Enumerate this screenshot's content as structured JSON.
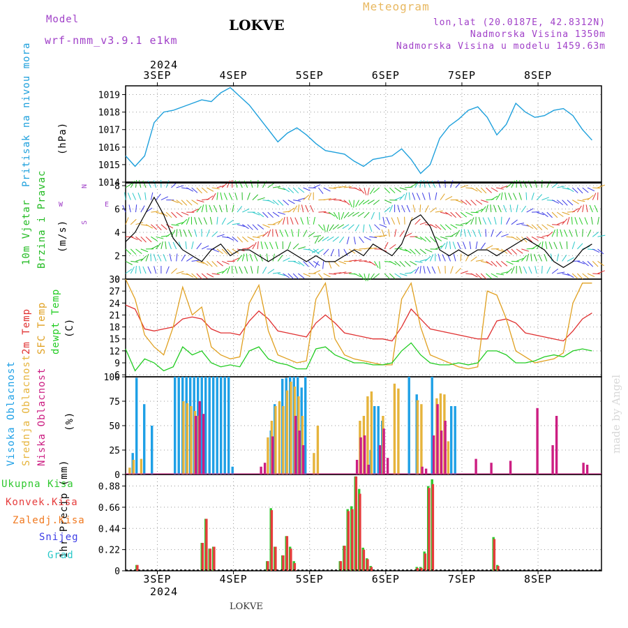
{
  "header": {
    "model_label": "Model",
    "model_name": "wrf-nmm_v3.9.1  e1km",
    "station": "LOKVE",
    "meteogram": "Meteogram",
    "coords": "lon,lat (20.0187E, 42.8312N)",
    "altitude": "Nadmorska Visina 1350m",
    "model_altitude": "Nadmorska Visina u modelu 1459.63m",
    "footer_station": "LOKVE",
    "watermark": "made by Angel"
  },
  "colors": {
    "pressure": "#1ea0dc",
    "wind_green": "#22bb22",
    "temp2m": "#e03030",
    "sfc": "#e0a020",
    "dew": "#22cc22",
    "high_cloud": "#1ea0e6",
    "mid_cloud": "#e6b43c",
    "low_cloud": "#cc1e82",
    "total_precip": "#2ec82e",
    "conv_precip": "#e63c3c",
    "frozen": "#f0781e",
    "snow": "#3c3ce6",
    "hail": "#28c8c8"
  },
  "axes": {
    "year_top": "2024",
    "year_bottom": "2024",
    "days": [
      "3SEP",
      "4SEP",
      "5SEP",
      "6SEP",
      "7SEP",
      "8SEP"
    ]
  },
  "panel_labels": {
    "pressure_title": "Pritisak na nivou mora",
    "pressure_unit": "(hPa)",
    "wind_title1": "10m Vjetar",
    "wind_title2": "Brzina i Pravac",
    "wind_unit": "(m/s)",
    "compass": [
      "N",
      "W",
      "E",
      "S"
    ],
    "temp_title1": "2m Temp",
    "temp_title2": "SFC Temp",
    "temp_title3": "dewpt Temp",
    "temp_unit": "(C)",
    "cloud_title1": "Visoka Oblacnost",
    "cloud_title2": "Srednja Oblacnost",
    "cloud_title3": "Niska Oblacnost",
    "cloud_unit": "(%)",
    "precip_title": "1hr Precip (mm)",
    "precip_legend": [
      "Ukupna Kisa",
      "Konvek.Kisa",
      "Zaledj.Kisa",
      "Snijeg",
      "Grad"
    ]
  },
  "chart_data": [
    {
      "type": "line",
      "name": "pressure",
      "ylim": [
        1014,
        1019.5
      ],
      "yticks": [
        1014,
        1015,
        1016,
        1017,
        1018,
        1019
      ],
      "x_hours": [
        0,
        3,
        6,
        9,
        12,
        15,
        18,
        21,
        24,
        27,
        30,
        33,
        36,
        39,
        42,
        45,
        48,
        51,
        54,
        57,
        60,
        63,
        66,
        69,
        72,
        75,
        78,
        81,
        84,
        87,
        90,
        93,
        96,
        99,
        102,
        105,
        108,
        111,
        114,
        117,
        120,
        123,
        126,
        129,
        132,
        135,
        138,
        141,
        144,
        147
      ],
      "values": [
        1015.5,
        1014.9,
        1015.5,
        1017.4,
        1018.0,
        1018.1,
        1018.3,
        1018.5,
        1018.7,
        1018.6,
        1019.1,
        1019.4,
        1018.9,
        1018.4,
        1017.7,
        1017.0,
        1016.3,
        1016.8,
        1017.1,
        1016.7,
        1016.2,
        1015.8,
        1015.7,
        1015.6,
        1015.2,
        1014.9,
        1015.3,
        1015.4,
        1015.5,
        1015.9,
        1015.3,
        1014.5,
        1015.0,
        1016.5,
        1017.2,
        1017.6,
        1018.1,
        1018.3,
        1017.7,
        1016.7,
        1017.3,
        1018.5,
        1018.0,
        1017.7,
        1017.8,
        1018.1,
        1018.2,
        1017.8,
        1017.0,
        1016.4
      ]
    },
    {
      "type": "line",
      "name": "wind_speed",
      "ylim": [
        0,
        8.3
      ],
      "yticks": [
        0,
        2,
        4,
        6,
        8
      ],
      "x_hours": [
        0,
        3,
        6,
        9,
        12,
        15,
        18,
        21,
        24,
        27,
        30,
        33,
        36,
        39,
        42,
        45,
        48,
        51,
        54,
        57,
        60,
        63,
        66,
        69,
        72,
        75,
        78,
        81,
        84,
        87,
        90,
        93,
        96,
        99,
        102,
        105,
        108,
        111,
        114,
        117,
        120,
        123,
        126,
        129,
        132,
        135,
        138,
        141,
        144,
        147
      ],
      "values": [
        3.2,
        4.0,
        5.5,
        7.0,
        5.5,
        3.5,
        2.5,
        2.0,
        1.5,
        2.5,
        3.0,
        2.0,
        2.5,
        2.5,
        2.0,
        1.5,
        2.0,
        2.5,
        2.0,
        1.5,
        2.0,
        1.5,
        1.5,
        2.0,
        2.5,
        2.0,
        3.0,
        2.5,
        2.0,
        3.0,
        5.0,
        5.5,
        4.5,
        2.5,
        2.0,
        2.5,
        2.0,
        2.5,
        2.5,
        2.0,
        2.5,
        3.0,
        3.5,
        3.0,
        2.5,
        1.5,
        1.0,
        1.5,
        2.5,
        3.0
      ]
    },
    {
      "type": "line",
      "name": "temperature",
      "ylim": [
        5.5,
        30
      ],
      "yticks": [
        6,
        9,
        12,
        15,
        18,
        21,
        24,
        27,
        30
      ],
      "x_hours": [
        0,
        3,
        6,
        9,
        12,
        15,
        18,
        21,
        24,
        27,
        30,
        33,
        36,
        39,
        42,
        45,
        48,
        51,
        54,
        57,
        60,
        63,
        66,
        69,
        72,
        75,
        78,
        81,
        84,
        87,
        90,
        93,
        96,
        99,
        102,
        105,
        108,
        111,
        114,
        117,
        120,
        123,
        126,
        129,
        132,
        135,
        138,
        141,
        144,
        147
      ],
      "series": [
        {
          "name": "2m Temp",
          "values": [
            23.5,
            22.5,
            17.5,
            17.0,
            17.5,
            18.0,
            20.0,
            20.5,
            20.0,
            17.5,
            16.5,
            16.5,
            16.0,
            19.5,
            22.0,
            20.0,
            17.0,
            16.5,
            16.0,
            15.5,
            19.0,
            21.0,
            19.0,
            16.5,
            16.0,
            15.5,
            15.0,
            15.0,
            14.5,
            18.0,
            22.5,
            20.0,
            17.5,
            17.0,
            16.5,
            16.0,
            15.5,
            15.0,
            15.0,
            19.5,
            20.0,
            19.0,
            16.5,
            16.0,
            15.5,
            15.0,
            14.5,
            17.0,
            20.0,
            21.5
          ]
        },
        {
          "name": "SFC Temp",
          "values": [
            30.0,
            25.0,
            16.0,
            13.0,
            11.0,
            18.0,
            28.0,
            21.0,
            23.0,
            13.0,
            11.0,
            10.0,
            10.5,
            24.0,
            28.5,
            17.0,
            11.0,
            10.0,
            9.0,
            9.5,
            25.0,
            29.0,
            15.0,
            11.0,
            10.0,
            9.5,
            9.0,
            8.5,
            8.5,
            25.0,
            29.0,
            18.0,
            11.0,
            10.0,
            9.0,
            8.0,
            7.5,
            8.0,
            27.0,
            26.0,
            20.0,
            12.0,
            10.5,
            9.0,
            9.5,
            10.0,
            11.5,
            24.0,
            29.0,
            29.0
          ]
        },
        {
          "name": "dewpt Temp",
          "values": [
            12.5,
            7.0,
            10.0,
            9.0,
            7.0,
            8.0,
            13.0,
            11.0,
            12.0,
            9.0,
            8.0,
            8.5,
            8.0,
            12.0,
            13.0,
            10.0,
            9.0,
            8.5,
            7.5,
            7.5,
            12.5,
            13.0,
            11.0,
            10.0,
            9.0,
            9.0,
            8.5,
            8.5,
            9.0,
            12.0,
            14.0,
            11.0,
            9.0,
            8.5,
            8.5,
            9.0,
            8.5,
            9.0,
            12.0,
            12.0,
            11.0,
            9.0,
            9.0,
            9.5,
            10.5,
            11.0,
            10.5,
            12.0,
            12.5,
            12.0
          ]
        }
      ]
    },
    {
      "type": "bar",
      "name": "cloud_cover",
      "ylim": [
        0,
        100
      ],
      "yticks": [
        0,
        25,
        50,
        75,
        100
      ],
      "series": [
        {
          "name": "Visoka Oblacnost",
          "points": [
            [
              1,
              22
            ],
            [
              2,
              99
            ],
            [
              4,
              72
            ],
            [
              6,
              50
            ],
            [
              12,
              100
            ],
            [
              13,
              100
            ],
            [
              14,
              100
            ],
            [
              15,
              100
            ],
            [
              16,
              100
            ],
            [
              17,
              100
            ],
            [
              18,
              100
            ],
            [
              19,
              100
            ],
            [
              20,
              100
            ],
            [
              21,
              100
            ],
            [
              22,
              100
            ],
            [
              23,
              100
            ],
            [
              24,
              100
            ],
            [
              25,
              100
            ],
            [
              26,
              100
            ],
            [
              27,
              8
            ],
            [
              37,
              45
            ],
            [
              38,
              72
            ],
            [
              40,
              98
            ],
            [
              41,
              99
            ],
            [
              42,
              100
            ],
            [
              43,
              100
            ],
            [
              44,
              100
            ],
            [
              45,
              89
            ],
            [
              46,
              100
            ],
            [
              63,
              25
            ],
            [
              64,
              70
            ],
            [
              65,
              70
            ],
            [
              66,
              55
            ],
            [
              73,
              100
            ],
            [
              75,
              82
            ],
            [
              79,
              100
            ],
            [
              84,
              70
            ],
            [
              85,
              70
            ]
          ]
        },
        {
          "name": "Srednja Oblacnost",
          "points": [
            [
              0,
              7
            ],
            [
              1,
              15
            ],
            [
              3,
              16
            ],
            [
              14,
              75
            ],
            [
              15,
              73
            ],
            [
              16,
              70
            ],
            [
              17,
              65
            ],
            [
              18,
              60
            ],
            [
              36,
              38
            ],
            [
              37,
              55
            ],
            [
              38,
              70
            ],
            [
              39,
              75
            ],
            [
              40,
              70
            ],
            [
              41,
              86
            ],
            [
              42,
              95
            ],
            [
              43,
              90
            ],
            [
              44,
              80
            ],
            [
              45,
              60
            ],
            [
              48,
              22
            ],
            [
              49,
              50
            ],
            [
              60,
              55
            ],
            [
              61,
              60
            ],
            [
              62,
              80
            ],
            [
              63,
              85
            ],
            [
              66,
              60
            ],
            [
              69,
              93
            ],
            [
              70,
              88
            ],
            [
              75,
              76
            ],
            [
              76,
              72
            ],
            [
              80,
              78
            ],
            [
              81,
              83
            ],
            [
              82,
              82
            ],
            [
              83,
              34
            ]
          ]
        },
        {
          "name": "Niska Oblacnost",
          "points": [
            [
              17,
              60
            ],
            [
              18,
              75
            ],
            [
              19,
              62
            ],
            [
              34,
              8
            ],
            [
              35,
              12
            ],
            [
              37,
              39
            ],
            [
              43,
              60
            ],
            [
              44,
              45
            ],
            [
              45,
              30
            ],
            [
              59,
              15
            ],
            [
              60,
              38
            ],
            [
              61,
              40
            ],
            [
              62,
              10
            ],
            [
              65,
              30
            ],
            [
              66,
              47
            ],
            [
              67,
              17
            ],
            [
              76,
              8
            ],
            [
              77,
              6
            ],
            [
              79,
              40
            ],
            [
              80,
              72
            ],
            [
              81,
              45
            ],
            [
              82,
              55
            ],
            [
              90,
              16
            ],
            [
              94,
              12
            ],
            [
              99,
              14
            ],
            [
              106,
              68
            ],
            [
              110,
              30
            ],
            [
              111,
              60
            ],
            [
              118,
              12
            ],
            [
              119,
              10
            ]
          ]
        }
      ]
    },
    {
      "type": "bar",
      "name": "precip",
      "ylim": [
        0,
        1.0
      ],
      "yticks": [
        "0",
        "0.22",
        "0.44",
        "0.66",
        "0.88"
      ],
      "series": [
        {
          "name": "Ukupna Kisa",
          "points": [
            [
              2,
              0.06
            ],
            [
              19,
              0.29
            ],
            [
              20,
              0.54
            ],
            [
              21,
              0.23
            ],
            [
              22,
              0.25
            ],
            [
              36,
              0.1
            ],
            [
              37,
              0.65
            ],
            [
              38,
              0.25
            ],
            [
              40,
              0.16
            ],
            [
              41,
              0.36
            ],
            [
              42,
              0.25
            ],
            [
              43,
              0.1
            ],
            [
              55,
              0.1
            ],
            [
              56,
              0.26
            ],
            [
              57,
              0.64
            ],
            [
              58,
              0.67
            ],
            [
              59,
              0.98
            ],
            [
              60,
              0.85
            ],
            [
              61,
              0.24
            ],
            [
              62,
              0.13
            ],
            [
              63,
              0.05
            ],
            [
              75,
              0.04
            ],
            [
              76,
              0.04
            ],
            [
              77,
              0.2
            ],
            [
              78,
              0.88
            ],
            [
              79,
              0.95
            ],
            [
              95,
              0.35
            ],
            [
              96,
              0.06
            ]
          ]
        },
        {
          "name": "Konvek.Kisa",
          "points": [
            [
              2,
              0.06
            ],
            [
              19,
              0.29
            ],
            [
              20,
              0.54
            ],
            [
              21,
              0.23
            ],
            [
              22,
              0.25
            ],
            [
              36,
              0.1
            ],
            [
              37,
              0.63
            ],
            [
              38,
              0.25
            ],
            [
              40,
              0.16
            ],
            [
              41,
              0.36
            ],
            [
              42,
              0.23
            ],
            [
              43,
              0.08
            ],
            [
              55,
              0.1
            ],
            [
              56,
              0.26
            ],
            [
              57,
              0.62
            ],
            [
              58,
              0.64
            ],
            [
              59,
              0.98
            ],
            [
              60,
              0.8
            ],
            [
              61,
              0.22
            ],
            [
              62,
              0.12
            ],
            [
              63,
              0.04
            ],
            [
              75,
              0.03
            ],
            [
              76,
              0.03
            ],
            [
              77,
              0.18
            ],
            [
              78,
              0.86
            ],
            [
              79,
              0.9
            ],
            [
              95,
              0.33
            ],
            [
              96,
              0.05
            ]
          ]
        }
      ]
    }
  ]
}
